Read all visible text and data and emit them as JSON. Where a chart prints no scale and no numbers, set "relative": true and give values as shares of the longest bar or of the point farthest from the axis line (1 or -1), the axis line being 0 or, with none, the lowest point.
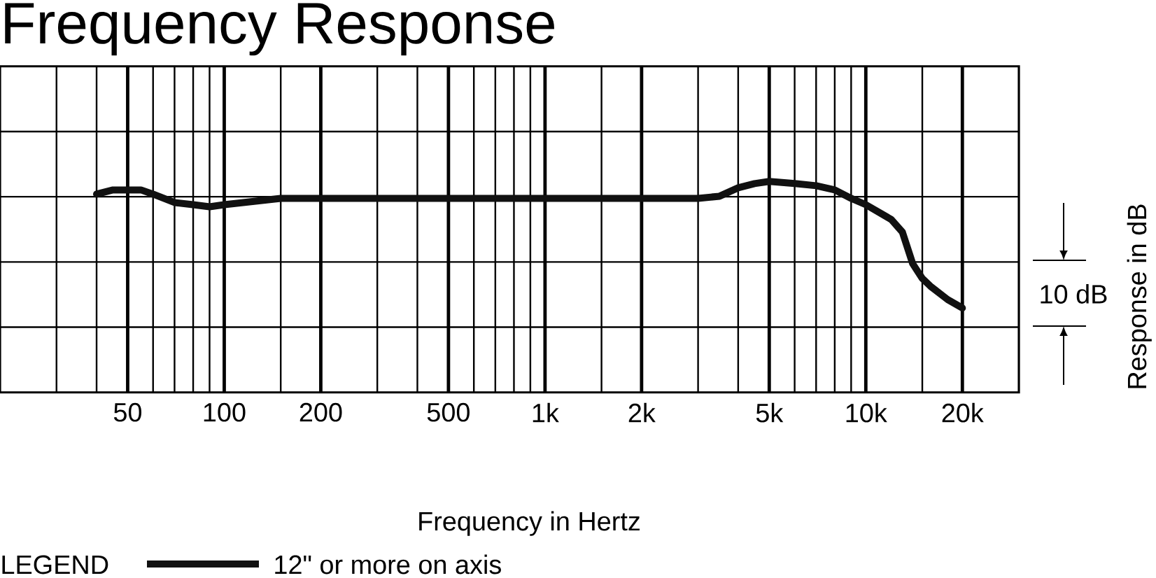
{
  "chart_data": {
    "type": "line",
    "title": "Frequency Response",
    "xlabel": "Frequency in Hertz",
    "ylabel": "Response in dB",
    "legend_title": "LEGEND",
    "legend": "bottom left",
    "annotations": [
      "10 dB"
    ],
    "relative": true,
    "log": "x",
    "grid": true,
    "xlim": [
      20,
      30000
    ],
    "xticks": [
      {
        "value": 30,
        "label": null
      },
      {
        "value": 40,
        "label": null
      },
      50,
      {
        "value": 60,
        "label": null
      },
      {
        "value": 70,
        "label": null
      },
      {
        "value": 80,
        "label": null
      },
      {
        "value": 90,
        "label": null
      },
      100,
      {
        "value": 150,
        "label": null
      },
      200,
      {
        "value": 300,
        "label": null
      },
      {
        "value": 400,
        "label": null
      },
      500,
      {
        "value": 600,
        "label": null
      },
      {
        "value": 700,
        "label": null
      },
      {
        "value": 800,
        "label": null
      },
      {
        "value": 900,
        "label": null
      },
      {
        "value": 1000,
        "label": "1k"
      },
      {
        "value": 1500,
        "label": null
      },
      {
        "value": 2000,
        "label": "2k"
      },
      {
        "value": 3000,
        "label": null
      },
      {
        "value": 4000,
        "label": null
      },
      {
        "value": 5000,
        "label": "5k"
      },
      {
        "value": 6000,
        "label": null
      },
      {
        "value": 7000,
        "label": null
      },
      {
        "value": 8000,
        "label": null
      },
      {
        "value": 9000,
        "label": null
      },
      {
        "value": 10000,
        "label": "10k"
      },
      {
        "value": 15000,
        "label": null
      },
      {
        "value": 20000,
        "label": "20k"
      }
    ],
    "series": [
      {
        "name": "12\" or more on axis",
        "color": "#111111",
        "line_style": "solid",
        "x": [
          40,
          45,
          50,
          55,
          60,
          70,
          80,
          90,
          100,
          150,
          200,
          500,
          1000,
          2000,
          3000,
          3500,
          4000,
          4500,
          5000,
          6000,
          7000,
          8000,
          9000,
          10000,
          12000,
          13000,
          14000,
          15000,
          16000,
          18000,
          20000
        ],
        "values": [
          0.94,
          0.96,
          0.96,
          0.96,
          0.94,
          0.9,
          0.89,
          0.88,
          0.89,
          0.92,
          0.92,
          0.92,
          0.92,
          0.92,
          0.92,
          0.93,
          0.97,
          0.99,
          1,
          0.99,
          0.98,
          0.96,
          0.92,
          0.89,
          0.82,
          0.76,
          0.61,
          0.54,
          0.5,
          0.44,
          0.4
        ]
      }
    ]
  }
}
